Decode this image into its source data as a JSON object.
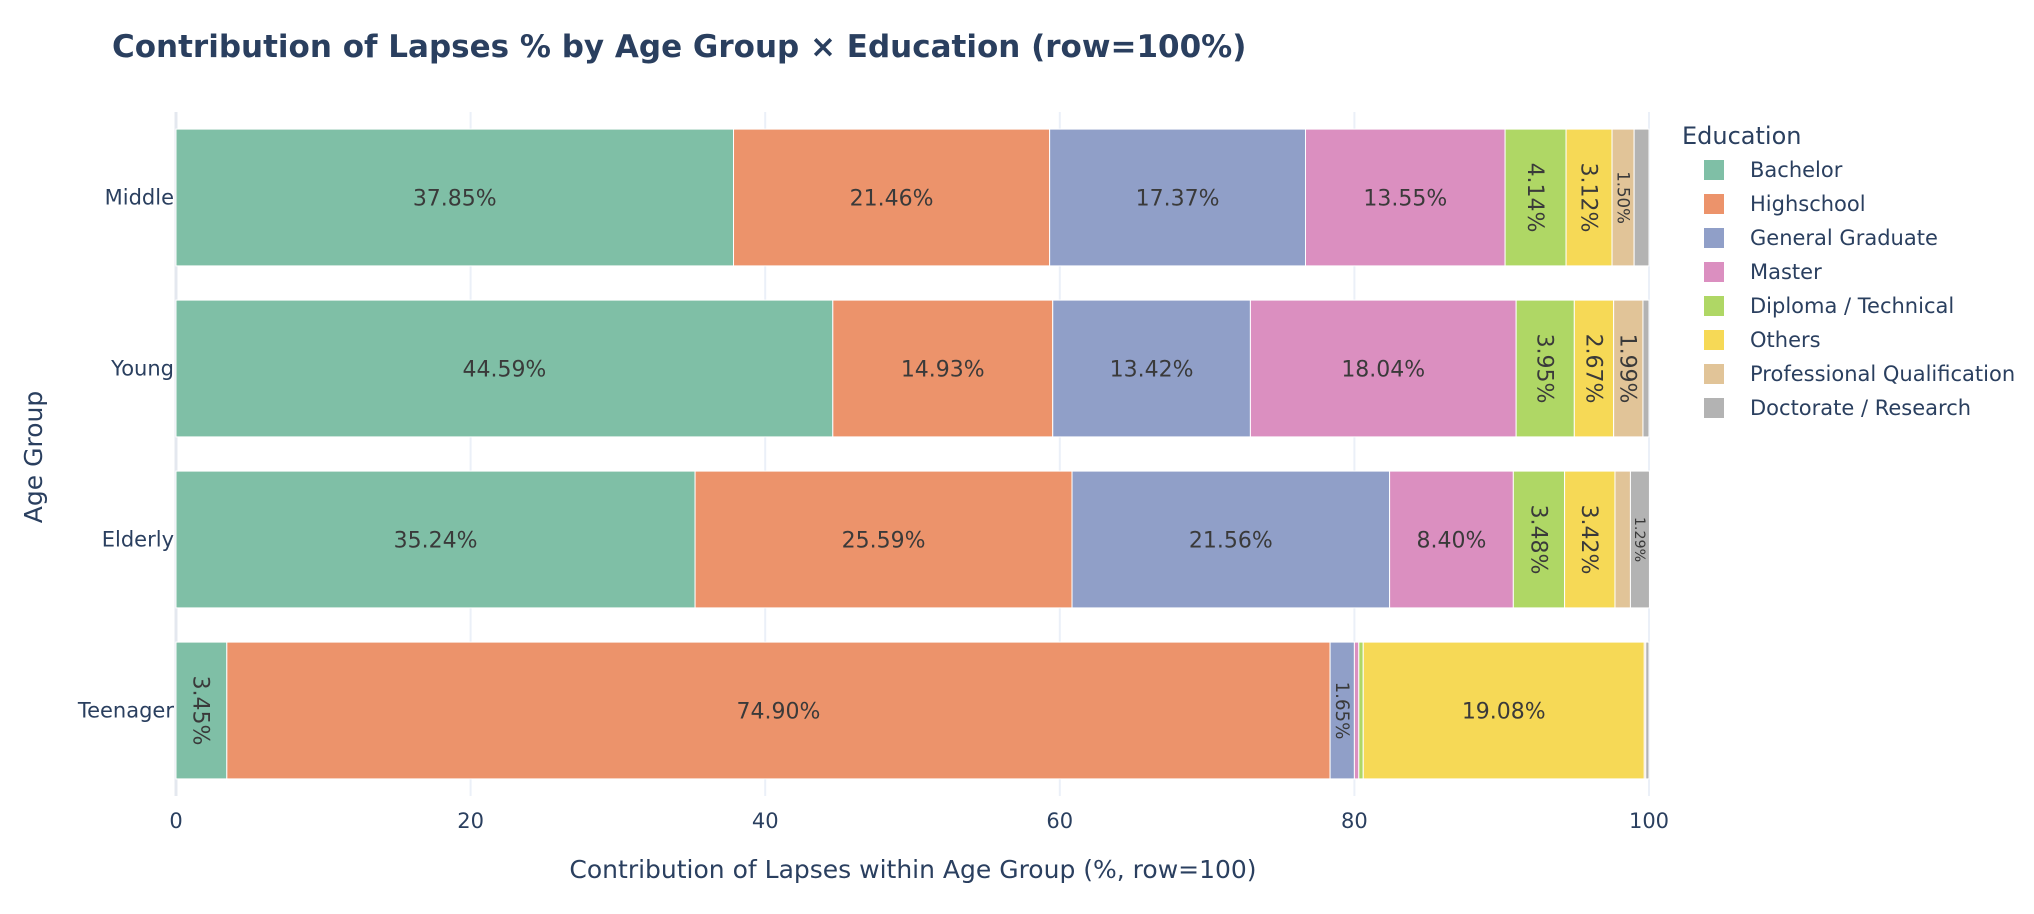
{
  "chart_data": {
    "type": "bar",
    "orientation": "horizontal",
    "barmode": "stack",
    "title": "Contribution of Lapses % by Age Group × Education (row=100%)",
    "xlabel": "Contribution of Lapses within Age Group (%, row=100)",
    "ylabel": "Age Group",
    "xlim": [
      0,
      100
    ],
    "x_ticks": [
      0,
      20,
      40,
      60,
      80,
      100
    ],
    "x_tick_labels": [
      "0",
      "20",
      "40",
      "60",
      "80",
      "100"
    ],
    "grid": true,
    "categories": [
      "Middle",
      "Young",
      "Elderly",
      "Teenager"
    ],
    "legend": {
      "title": "Education",
      "position": "right"
    },
    "series": [
      {
        "name": "Bachelor",
        "color": "#7fbfa6",
        "values": [
          37.85,
          44.59,
          35.24,
          3.45
        ],
        "labels": [
          "37.85%",
          "44.59%",
          "35.24%",
          "3.45%"
        ]
      },
      {
        "name": "Highschool",
        "color": "#ec936b",
        "values": [
          21.46,
          14.93,
          25.59,
          74.9
        ],
        "labels": [
          "21.46%",
          "14.93%",
          "25.59%",
          "74.90%"
        ]
      },
      {
        "name": "General Graduate",
        "color": "#909fc8",
        "values": [
          17.37,
          13.42,
          21.56,
          1.65
        ],
        "labels": [
          "17.37%",
          "13.42%",
          "21.56%",
          "1.65%"
        ]
      },
      {
        "name": "Master",
        "color": "#db8fc0",
        "values": [
          13.55,
          18.04,
          8.4,
          0.3
        ],
        "labels": [
          "13.55%",
          "18.04%",
          "8.40%",
          ""
        ]
      },
      {
        "name": "Diploma / Technical",
        "color": "#afd765",
        "values": [
          4.14,
          3.95,
          3.48,
          0.3
        ],
        "labels": [
          "4.14%",
          "3.95%",
          "3.48%",
          ""
        ]
      },
      {
        "name": "Others",
        "color": "#f6d956",
        "values": [
          3.12,
          2.67,
          3.42,
          19.08
        ],
        "labels": [
          "3.12%",
          "2.67%",
          "3.42%",
          "19.08%"
        ]
      },
      {
        "name": "Professional Qualification",
        "color": "#e1c498",
        "values": [
          1.5,
          1.99,
          1.05,
          0.1
        ],
        "labels": [
          "1.50%",
          "1.99%",
          "",
          ""
        ]
      },
      {
        "name": "Doctorate / Research",
        "color": "#b3b3b3",
        "values": [
          1.01,
          0.41,
          1.29,
          0.22
        ],
        "labels": [
          "",
          "",
          "1.29%",
          ""
        ]
      }
    ]
  }
}
